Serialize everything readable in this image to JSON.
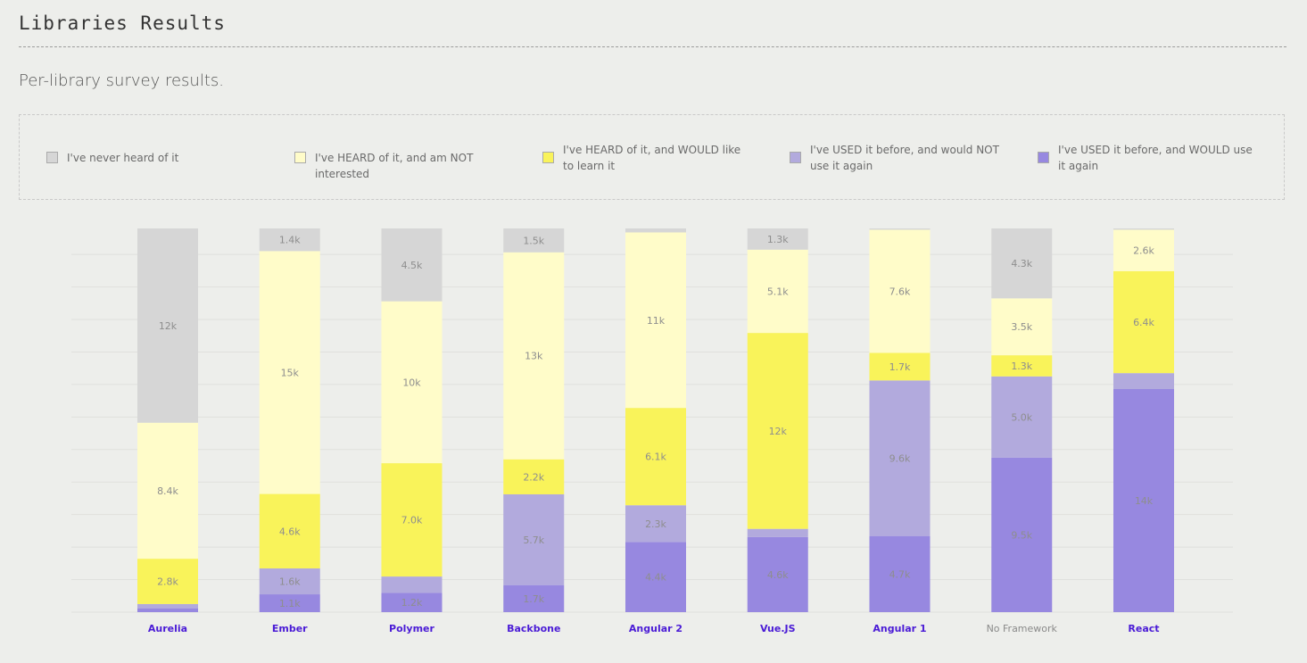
{
  "page": {
    "title": "Libraries Results",
    "subtitle": "Per-library survey results."
  },
  "colors": {
    "never_heard": "#d6d6d6",
    "heard_not_interested": "#fffcc9",
    "heard_would_learn": "#f9f35a",
    "used_would_not": "#b2aadd",
    "used_would": "#9788e0",
    "label_active": "#4a1bd6",
    "label_inactive": "#8a8a8a"
  },
  "legend": [
    {
      "key": "never_heard",
      "label": "I've never heard of it"
    },
    {
      "key": "heard_not_interested",
      "label": "I've HEARD of it, and am NOT interested"
    },
    {
      "key": "heard_would_learn",
      "label": "I've HEARD of it, and WOULD like to learn it"
    },
    {
      "key": "used_would_not",
      "label": "I've USED it before, and would NOT use it again"
    },
    {
      "key": "used_would",
      "label": "I've USED it before, and WOULD use it again"
    }
  ],
  "chart_data": {
    "type": "bar",
    "stacked": true,
    "grid": true,
    "categories": [
      "Aurelia",
      "Ember",
      "Polymer",
      "Backbone",
      "Angular 2",
      "Vue.JS",
      "Angular 1",
      "No Framework",
      "React"
    ],
    "category_active": [
      true,
      true,
      true,
      true,
      true,
      true,
      true,
      false,
      true
    ],
    "series": [
      {
        "name": "I've USED it before, and WOULD use it again",
        "key": "used_would",
        "values": [
          240,
          1100,
          1200,
          1700,
          4400,
          4600,
          4700,
          9500,
          14000
        ],
        "labels": [
          "",
          "1.1k",
          "1.2k",
          "1.7k",
          "4.4k",
          "4.6k",
          "4.7k",
          "9.5k",
          "14k"
        ]
      },
      {
        "name": "I've USED it before, and would NOT use it again",
        "key": "used_would_not",
        "values": [
          260,
          1600,
          1000,
          5700,
          2300,
          500,
          9600,
          5000,
          1000
        ],
        "labels": [
          "",
          "1.6k",
          "",
          "5.7k",
          "2.3k",
          "",
          "9.6k",
          "5.0k",
          ""
        ]
      },
      {
        "name": "I've HEARD of it, and WOULD like to learn it",
        "key": "heard_would_learn",
        "values": [
          2800,
          4600,
          7000,
          2200,
          6100,
          12000,
          1700,
          1300,
          6400
        ],
        "labels": [
          "2.8k",
          "4.6k",
          "7.0k",
          "2.2k",
          "6.1k",
          "12k",
          "1.7k",
          "1.3k",
          "6.4k"
        ]
      },
      {
        "name": "I've HEARD of it, and am NOT interested",
        "key": "heard_not_interested",
        "values": [
          8400,
          15000,
          10000,
          13000,
          11000,
          5100,
          7600,
          3500,
          2600
        ],
        "labels": [
          "8.4k",
          "15k",
          "10k",
          "13k",
          "11k",
          "5.1k",
          "7.6k",
          "3.5k",
          "2.6k"
        ]
      },
      {
        "name": "I've never heard of it",
        "key": "never_heard",
        "values": [
          12000,
          1400,
          4500,
          1500,
          250,
          1300,
          80,
          4300,
          80
        ],
        "labels": [
          "12k",
          "1.4k",
          "4.5k",
          "1.5k",
          "",
          "1.3k",
          "",
          "4.3k",
          ""
        ]
      }
    ]
  }
}
